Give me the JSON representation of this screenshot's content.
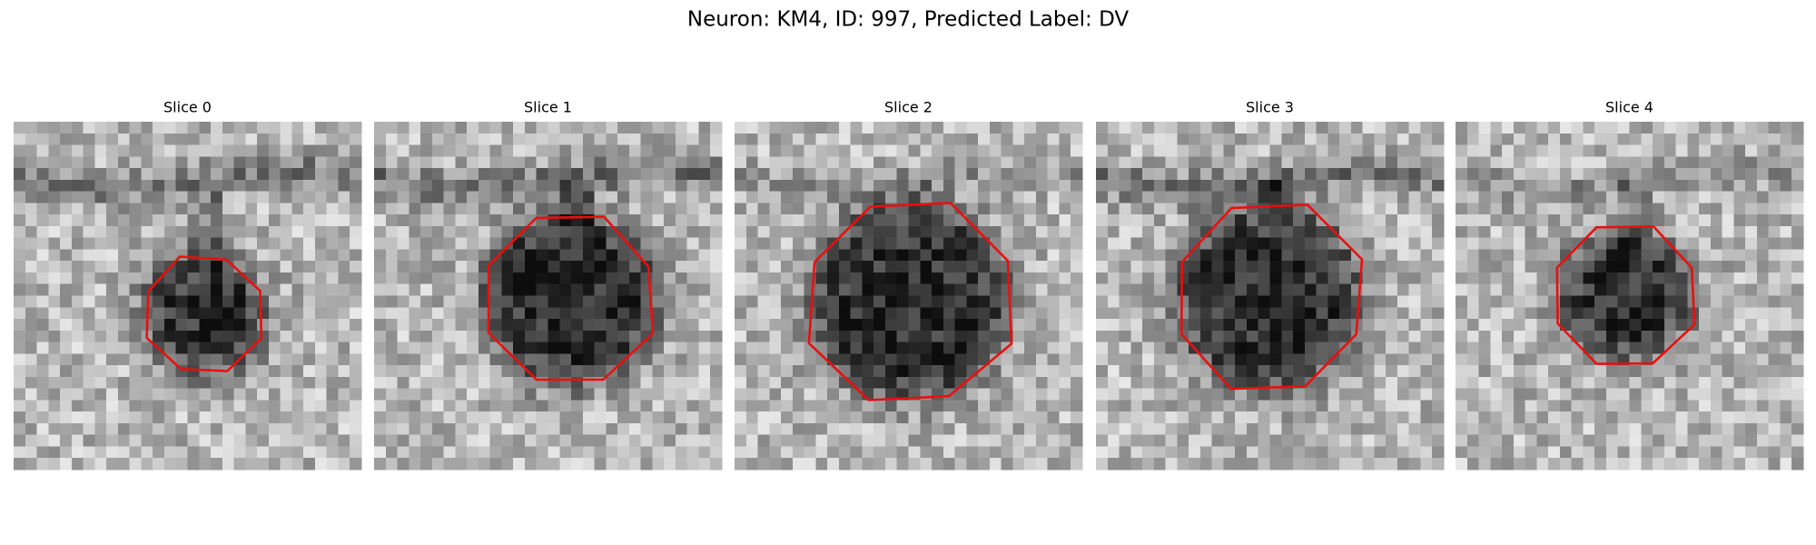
{
  "title": "Neuron: KM4, ID: 997, Predicted Label: DV",
  "panels": [
    {
      "title": "Slice 0"
    },
    {
      "title": "Slice 1"
    },
    {
      "title": "Slice 2"
    },
    {
      "title": "Slice 3"
    },
    {
      "title": "Slice 4"
    }
  ]
}
